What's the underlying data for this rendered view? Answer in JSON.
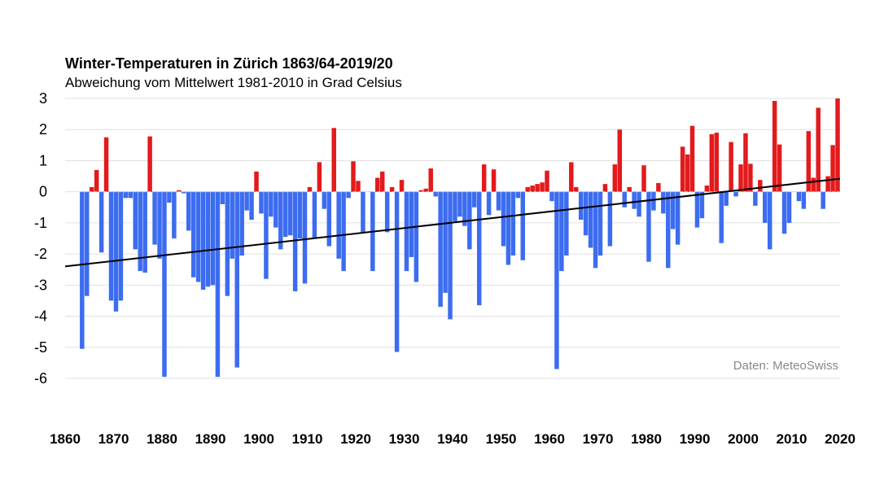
{
  "chart_data": {
    "type": "bar",
    "title": "Winter-Temperaturen in Zürich 1863/64-2019/20",
    "subtitle": "Abweichung vom Mittelwert 1981-2010 in Grad Celsius",
    "source": "Daten: MeteoSwiss",
    "ylim": [
      -6,
      3
    ],
    "yticks": [
      "3",
      "2",
      "1",
      "0",
      "-1",
      "-2",
      "-3",
      "-4",
      "-5",
      "-6"
    ],
    "xlim": [
      1860,
      2020
    ],
    "xticks": [
      "1860",
      "1870",
      "1880",
      "1890",
      "1900",
      "1910",
      "1920",
      "1930",
      "1940",
      "1950",
      "1960",
      "1970",
      "1980",
      "1990",
      "2000",
      "2010",
      "2020"
    ],
    "grid": true,
    "colors": {
      "positive": "#e31a1c",
      "negative": "#3c6cf0",
      "trend": "#000000",
      "grid": "#e0e0e0"
    },
    "trend": {
      "x": [
        1860,
        2020
      ],
      "y": [
        -2.4,
        0.42
      ]
    },
    "series": [
      {
        "x": [
          1864,
          1865,
          1866,
          1867,
          1868,
          1869,
          1870,
          1871,
          1872,
          1873,
          1874,
          1875,
          1876,
          1877,
          1878,
          1879,
          1880,
          1881,
          1882,
          1883,
          1884,
          1885,
          1886,
          1887,
          1888,
          1889,
          1890,
          1891,
          1892,
          1893,
          1894,
          1895,
          1896,
          1897,
          1898,
          1899,
          1900,
          1901,
          1902,
          1903,
          1904,
          1905,
          1906,
          1907,
          1908,
          1909,
          1910,
          1911,
          1912,
          1913,
          1914,
          1915,
          1916,
          1917,
          1918,
          1919,
          1920,
          1921,
          1922,
          1923,
          1924,
          1925,
          1926,
          1927,
          1928,
          1929,
          1930,
          1931,
          1932,
          1933,
          1934,
          1935,
          1936,
          1937,
          1938,
          1939,
          1940,
          1941,
          1942,
          1943,
          1944,
          1945,
          1946,
          1947,
          1948,
          1949,
          1950,
          1951,
          1952,
          1953,
          1954,
          1955,
          1956,
          1957,
          1958,
          1959,
          1960,
          1961,
          1962,
          1963,
          1964,
          1965,
          1966,
          1967,
          1968,
          1969,
          1970,
          1971,
          1972,
          1973,
          1974,
          1975,
          1976,
          1977,
          1978,
          1979,
          1980,
          1981,
          1982,
          1983,
          1984,
          1985,
          1986,
          1987,
          1988,
          1989,
          1990,
          1991,
          1992,
          1993,
          1994,
          1995,
          1996,
          1997,
          1998,
          1999,
          2000,
          2001,
          2002,
          2003,
          2004,
          2005,
          2006,
          2007,
          2008,
          2009,
          2010,
          2011,
          2012,
          2013,
          2014,
          2015,
          2016,
          2017,
          2018,
          2019,
          2020
        ],
        "values": [
          -5.05,
          -3.35,
          0.15,
          0.7,
          -1.95,
          1.75,
          -3.5,
          -3.85,
          -3.5,
          -0.2,
          -0.2,
          -1.85,
          -2.55,
          -2.6,
          1.78,
          -1.7,
          -2.15,
          -5.95,
          -0.35,
          -1.5,
          0.05,
          -0.05,
          -1.25,
          -2.75,
          -2.9,
          -3.15,
          -3.05,
          -3.0,
          -5.95,
          -0.4,
          -3.35,
          -2.15,
          -5.65,
          -2.05,
          -0.6,
          -0.9,
          0.65,
          -0.7,
          -2.8,
          -0.8,
          -1.15,
          -1.85,
          -1.45,
          -1.4,
          -3.2,
          -1.5,
          -2.95,
          0.15,
          -1.5,
          0.95,
          -0.55,
          -1.75,
          2.05,
          -2.15,
          -2.55,
          -0.2,
          0.98,
          0.35,
          -1.3,
          0.0,
          -2.55,
          0.45,
          0.65,
          -1.3,
          0.15,
          -5.15,
          0.38,
          -2.55,
          -2.1,
          -2.9,
          0.05,
          0.1,
          0.75,
          -0.15,
          -3.7,
          -3.25,
          -4.1,
          -0.95,
          -0.8,
          -1.1,
          -1.85,
          -0.5,
          -3.65,
          0.88,
          -0.75,
          0.72,
          -0.6,
          -1.75,
          -2.35,
          -2.05,
          -0.2,
          -2.2,
          0.15,
          0.2,
          0.25,
          0.3,
          0.68,
          -0.3,
          -5.7,
          -2.55,
          -2.05,
          0.95,
          0.15,
          -0.9,
          -1.4,
          -1.8,
          -2.45,
          -2.05,
          0.25,
          -1.75,
          0.88,
          2.0,
          -0.5,
          0.15,
          -0.55,
          -0.8,
          0.85,
          -2.25,
          -0.6,
          0.28,
          -0.7,
          -2.45,
          -1.2,
          -1.7,
          1.45,
          1.2,
          2.12,
          -1.15,
          -0.85,
          0.2,
          1.85,
          1.9,
          -1.65,
          -0.45,
          1.6,
          -0.15,
          0.88,
          1.88,
          0.9,
          -0.45,
          0.38,
          -1.0,
          -1.85,
          2.92,
          1.52,
          -1.35,
          -1.0,
          0.0,
          -0.3,
          -0.55,
          1.95,
          0.45,
          2.7,
          -0.55,
          0.5,
          1.5,
          3.0
        ]
      }
    ]
  }
}
